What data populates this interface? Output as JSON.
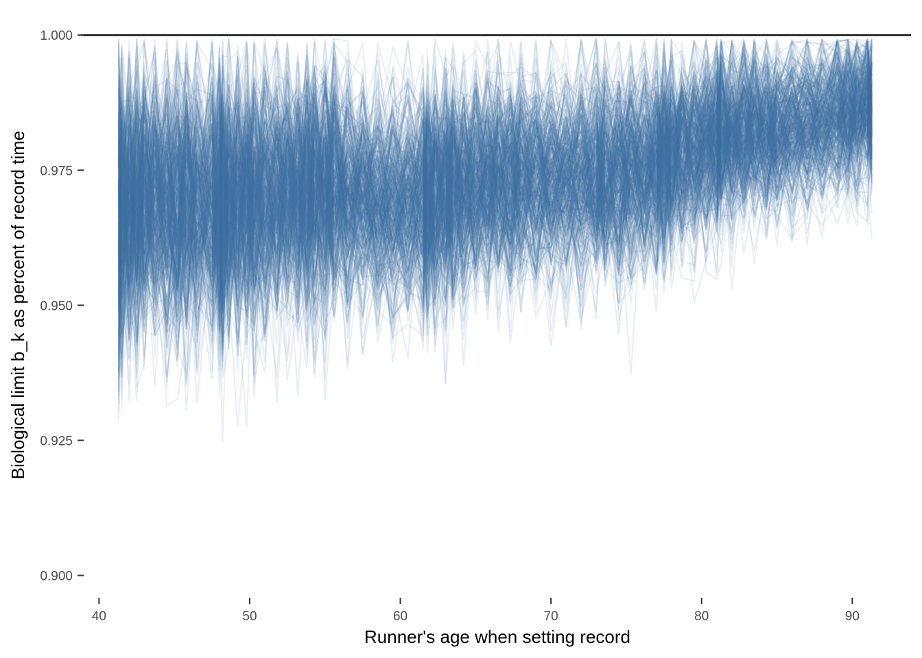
{
  "chart_data": {
    "type": "line",
    "title": "",
    "xlabel": "Runner's age when setting record",
    "ylabel": "Biological limit b_k as percent of record time",
    "xlim": [
      38.8,
      93.9
    ],
    "ylim": [
      0.8955,
      1.0065
    ],
    "x_ticks": [
      40,
      50,
      60,
      70,
      80,
      90
    ],
    "x_tick_labels": [
      "40",
      "50",
      "60",
      "70",
      "80",
      "90"
    ],
    "y_ticks": [
      0.9,
      0.925,
      0.95,
      0.975,
      1.0
    ],
    "y_tick_labels": [
      "0.900",
      "0.925",
      "0.950",
      "0.975",
      "1.000"
    ],
    "reference_line": {
      "y": 1.0,
      "color": "#000000"
    },
    "grid": false,
    "legend": "none",
    "series_color": "#4472a8",
    "series_opacity": 0.12,
    "record_ages": [
      41.3,
      41.5,
      42.0,
      42.5,
      43.0,
      43.7,
      44.5,
      45.2,
      45.8,
      46.5,
      47.5,
      48.0,
      48.2,
      48.6,
      49.2,
      49.8,
      50.3,
      51.0,
      51.8,
      52.5,
      53.2,
      53.8,
      54.3,
      55.0,
      55.6,
      56.5,
      57.5,
      58.5,
      59.5,
      60.5,
      61.5,
      61.8,
      62.3,
      63.0,
      63.5,
      64.2,
      65.0,
      65.8,
      66.5,
      67.3,
      68.0,
      69.0,
      70.0,
      71.0,
      72.0,
      73.0,
      73.6,
      74.5,
      75.3,
      76.2,
      77.0,
      77.5,
      78.0,
      78.7,
      79.5,
      80.3,
      81.0,
      81.3,
      82.0,
      82.8,
      83.5,
      84.3,
      85.0,
      86.0,
      87.0,
      88.0,
      89.0,
      89.7,
      90.3,
      91.0,
      91.3
    ],
    "mean_profile": [
      0.9665,
      0.9675,
      0.9685,
      0.969,
      0.9695,
      0.969,
      0.9685,
      0.9685,
      0.969,
      0.9695,
      0.9695,
      0.9685,
      0.968,
      0.969,
      0.969,
      0.9695,
      0.9695,
      0.97,
      0.97,
      0.9705,
      0.9705,
      0.971,
      0.9715,
      0.9715,
      0.972,
      0.9705,
      0.9695,
      0.969,
      0.969,
      0.969,
      0.9695,
      0.9695,
      0.97,
      0.9705,
      0.971,
      0.971,
      0.972,
      0.972,
      0.9725,
      0.9725,
      0.973,
      0.973,
      0.973,
      0.973,
      0.973,
      0.9735,
      0.9735,
      0.974,
      0.9745,
      0.975,
      0.976,
      0.9765,
      0.977,
      0.978,
      0.979,
      0.9795,
      0.98,
      0.9805,
      0.981,
      0.9815,
      0.982,
      0.982,
      0.9825,
      0.983,
      0.9835,
      0.984,
      0.985,
      0.9855,
      0.986,
      0.987,
      0.986
    ],
    "spread_profile": [
      0.013,
      0.012,
      0.012,
      0.0115,
      0.0115,
      0.0115,
      0.0115,
      0.0115,
      0.0115,
      0.0115,
      0.0115,
      0.012,
      0.012,
      0.0115,
      0.011,
      0.011,
      0.011,
      0.0105,
      0.0105,
      0.0105,
      0.0105,
      0.0105,
      0.0105,
      0.0105,
      0.0105,
      0.0095,
      0.009,
      0.009,
      0.009,
      0.009,
      0.0095,
      0.0095,
      0.0095,
      0.0095,
      0.0095,
      0.0095,
      0.009,
      0.009,
      0.009,
      0.009,
      0.0085,
      0.0085,
      0.0085,
      0.0085,
      0.0085,
      0.0085,
      0.0085,
      0.0085,
      0.0085,
      0.008,
      0.008,
      0.008,
      0.008,
      0.0075,
      0.0075,
      0.0075,
      0.0075,
      0.0075,
      0.007,
      0.007,
      0.007,
      0.0065,
      0.0065,
      0.0065,
      0.0065,
      0.006,
      0.006,
      0.006,
      0.006,
      0.0055,
      0.0055
    ],
    "num_draws": 400,
    "y_min_shown": 0.8955
  }
}
